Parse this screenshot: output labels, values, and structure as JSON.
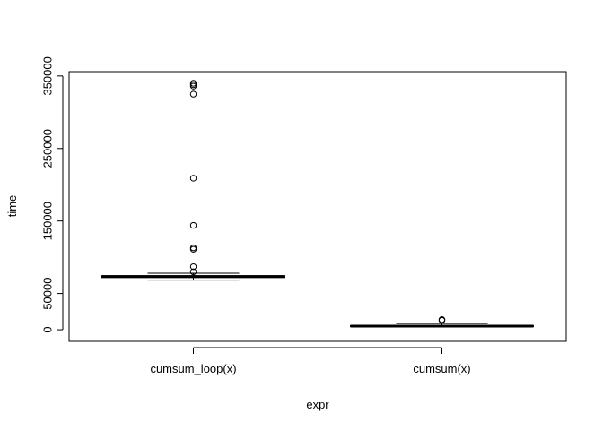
{
  "chart_data": {
    "type": "boxplot",
    "xlabel": "expr",
    "ylabel": "time",
    "categories": [
      "cumsum_loop(x)",
      "cumsum(x)"
    ],
    "ylim": [
      -16000,
      356000
    ],
    "yticks": [
      0,
      50000,
      150000,
      250000,
      350000
    ],
    "ytick_labels": [
      "0",
      "50000",
      "150000",
      "250000",
      "350000"
    ],
    "boxes": [
      {
        "name": "cumsum_loop(x)",
        "whisker_low": 68500,
        "q1": 72000,
        "median": 73500,
        "q3": 74500,
        "whisker_high": 78000,
        "outliers": [
          80000,
          87000,
          111000,
          113000,
          144000,
          209000,
          325000,
          336000,
          338000,
          340000
        ]
      },
      {
        "name": "cumsum(x)",
        "whisker_low": 4000,
        "q1": 4500,
        "median": 5000,
        "q3": 5500,
        "whisker_high": 8500,
        "outliers": [
          13000,
          14000
        ]
      }
    ]
  }
}
